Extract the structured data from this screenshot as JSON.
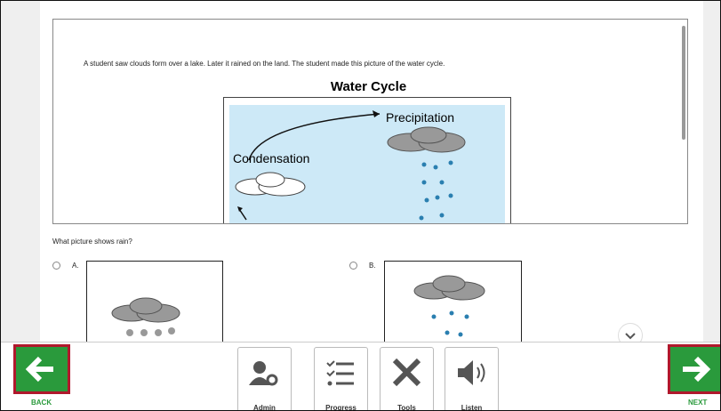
{
  "passage": {
    "text": "A student saw clouds form over a lake. Later it rained on the land. The student made this picture of the water cycle.",
    "diagram_title": "Water Cycle",
    "labels": [
      "Precipitation",
      "Condensation"
    ]
  },
  "question": {
    "text": "What picture shows rain?",
    "options": [
      "A.",
      "B."
    ]
  },
  "toolbar": [
    "Admin",
    "Progress",
    "Tools",
    "Listen"
  ],
  "nav": {
    "back": "BACK",
    "next": "NEXT"
  }
}
